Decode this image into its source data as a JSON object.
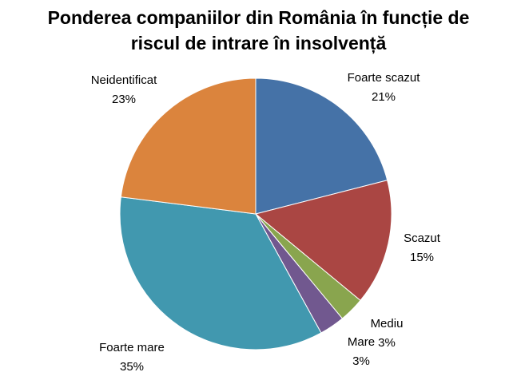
{
  "chart_data": {
    "type": "pie",
    "title": "Ponderea companiilor din România în funcție de riscul de intrare în insolvență",
    "categories": [
      "Foarte scazut",
      "Scazut",
      "Mediu",
      "Mare",
      "Foarte mare",
      "Neidentificat"
    ],
    "values": [
      21,
      15,
      3,
      3,
      35,
      23
    ],
    "value_labels": [
      "21%",
      "15%",
      "3%",
      "3%",
      "35%",
      "23%"
    ],
    "colors": [
      "#4572a7",
      "#aa4643",
      "#89a54e",
      "#71588f",
      "#4198af",
      "#db843d"
    ]
  }
}
